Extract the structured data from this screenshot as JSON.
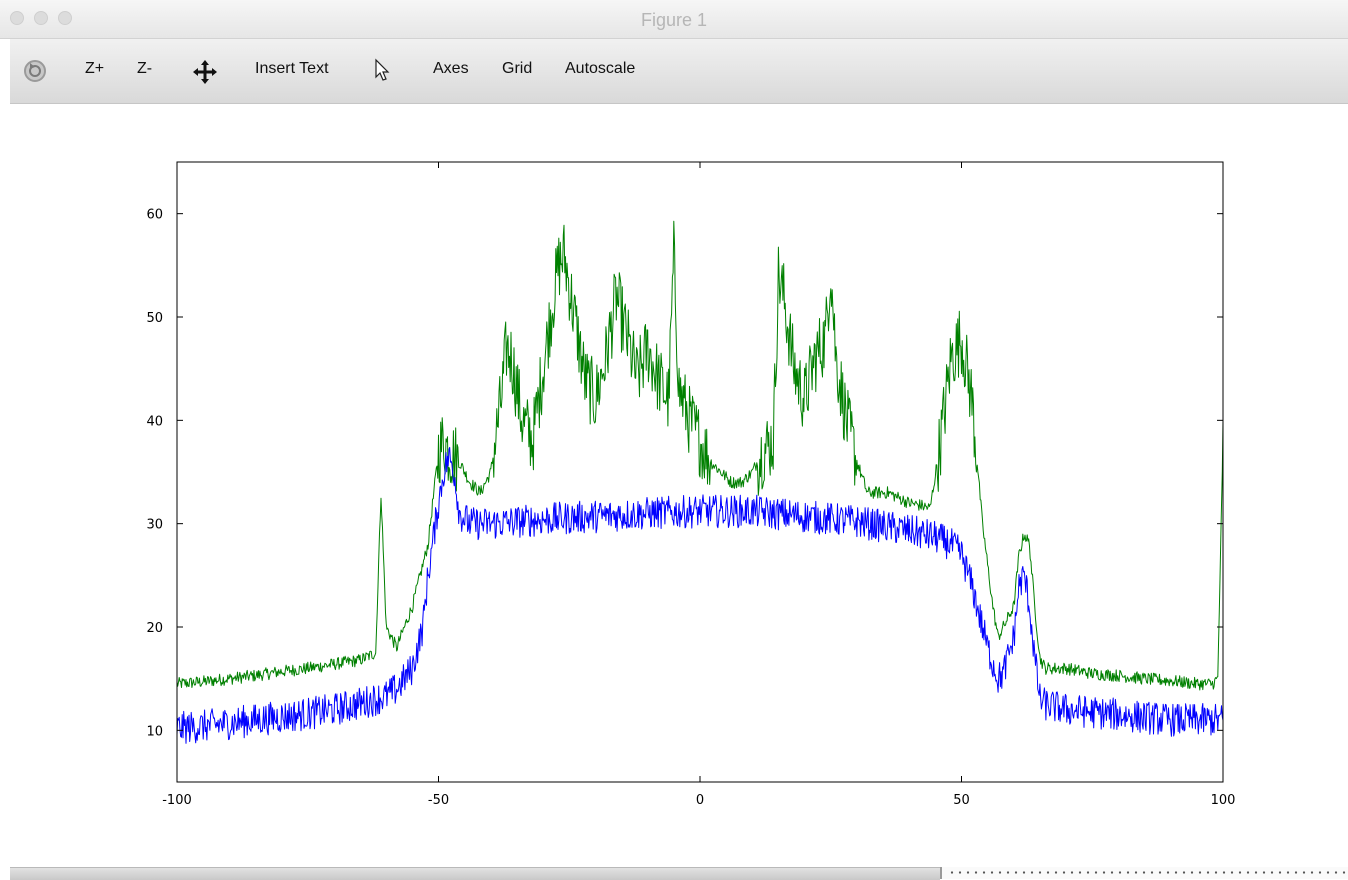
{
  "window": {
    "title": "Figure 1"
  },
  "toolbar": {
    "items": [
      {
        "name": "rotate-icon",
        "label": ""
      },
      {
        "name": "zoom-in-button",
        "label": "Z+"
      },
      {
        "name": "zoom-out-button",
        "label": "Z-"
      },
      {
        "name": "pan-icon",
        "label": ""
      },
      {
        "name": "insert-text-button",
        "label": "Insert Text"
      },
      {
        "name": "select-pointer-icon",
        "label": ""
      },
      {
        "name": "axes-button",
        "label": "Axes"
      },
      {
        "name": "grid-button",
        "label": "Grid"
      },
      {
        "name": "autoscale-button",
        "label": "Autoscale"
      }
    ]
  },
  "chart_data": {
    "type": "line",
    "title": "",
    "xlabel": "",
    "ylabel": "",
    "xlim": [
      -100,
      100
    ],
    "ylim": [
      5,
      65
    ],
    "xticks": [
      -100,
      -50,
      0,
      50,
      100
    ],
    "yticks": [
      10,
      20,
      30,
      40,
      50,
      60
    ],
    "grid": false,
    "legend": "none",
    "series": [
      {
        "color": "#008000",
        "x": [
          -100,
          -95,
          -90,
          -85,
          -80,
          -75,
          -70,
          -65,
          -62,
          -61,
          -60,
          -58,
          -55,
          -52,
          -50,
          -49,
          -48,
          -46,
          -44,
          -42,
          -40,
          -38,
          -37,
          -36,
          -34,
          -32,
          -30,
          -28,
          -27,
          -26,
          -24,
          -22,
          -20,
          -18,
          -16,
          -14,
          -12,
          -10,
          -8,
          -6,
          -5,
          -4,
          -2,
          0,
          2,
          4,
          6,
          8,
          10,
          12,
          14,
          15,
          16,
          18,
          20,
          22,
          24,
          25,
          26,
          28,
          30,
          32,
          34,
          36,
          38,
          40,
          42,
          44,
          46,
          48,
          50,
          52,
          54,
          56,
          57,
          58,
          60,
          61,
          62,
          63,
          64,
          65,
          66,
          70,
          75,
          80,
          85,
          90,
          95,
          98,
          99,
          100
        ],
        "y": [
          14.5,
          14.7,
          15.0,
          15.3,
          15.7,
          16.0,
          16.4,
          16.8,
          17.5,
          33,
          20,
          18,
          22,
          28,
          37,
          38,
          37,
          36,
          34,
          33,
          35,
          42,
          47,
          46,
          40,
          38,
          45,
          52,
          55,
          56,
          50,
          44,
          42,
          46,
          52,
          48,
          44,
          47,
          44,
          42,
          56,
          43,
          40,
          38,
          36,
          35,
          34,
          34,
          35,
          37,
          38,
          54,
          52,
          45,
          42,
          46,
          48,
          55,
          46,
          40,
          36,
          33,
          33,
          33,
          32.5,
          32,
          31.8,
          31.5,
          38,
          46,
          48,
          42,
          30,
          22,
          19,
          20,
          22,
          27,
          29,
          28,
          22,
          17,
          16,
          16,
          15.5,
          15.3,
          15,
          14.8,
          14.5,
          14.5,
          15,
          38
        ]
      },
      {
        "color": "#0000ff",
        "x": [
          -100,
          -95,
          -90,
          -85,
          -80,
          -75,
          -70,
          -65,
          -60,
          -58,
          -55,
          -53,
          -52,
          -50,
          -49,
          -48,
          -47,
          -46,
          -44,
          -40,
          -30,
          -20,
          -10,
          0,
          10,
          20,
          30,
          40,
          45,
          48,
          50,
          52,
          54,
          55,
          57,
          58,
          60,
          61,
          62,
          63,
          64,
          65,
          66,
          70,
          80,
          90,
          100
        ],
        "y": [
          10.2,
          10.4,
          10.7,
          11.0,
          11.3,
          11.6,
          12.0,
          12.6,
          13.3,
          14,
          16,
          20,
          25,
          32,
          35,
          36.5,
          35,
          31,
          30,
          30,
          30.4,
          30.7,
          31,
          31.2,
          31.2,
          30.7,
          30.2,
          29.3,
          28.7,
          28,
          27,
          24,
          20,
          18,
          15,
          15.5,
          19,
          24,
          25,
          22,
          17,
          13,
          12.5,
          12,
          11.5,
          11,
          11
        ]
      }
    ]
  }
}
